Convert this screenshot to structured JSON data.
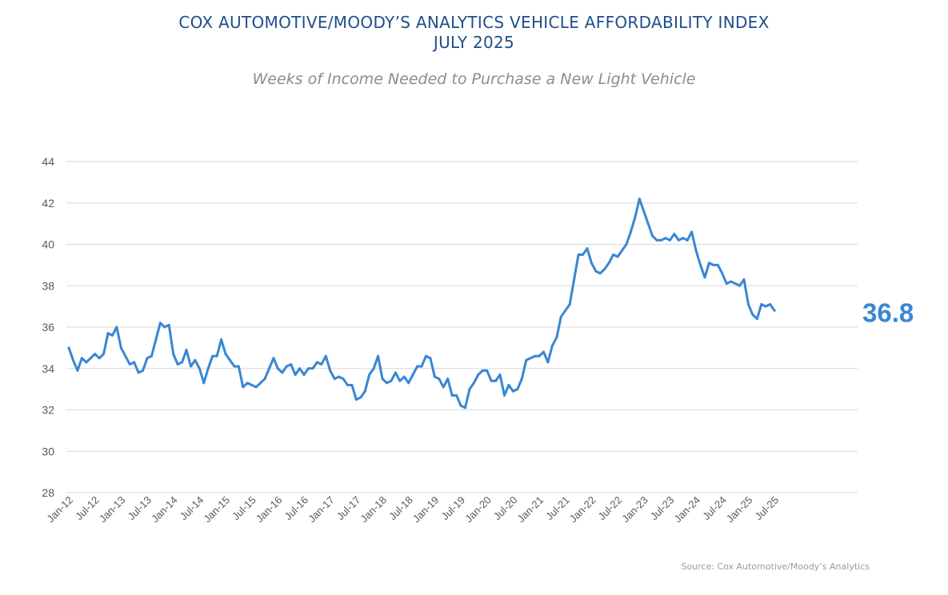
{
  "chart_data": {
    "type": "line",
    "title": "COX AUTOMOTIVE/MOODY’S ANALYTICS VEHICLE AFFORDABILITY INDEX",
    "title_line2": "JULY 2025",
    "subtitle": "Weeks of Income Needed to Purchase a New Light Vehicle",
    "xlabel": "",
    "ylabel": "",
    "ylim": [
      28,
      44
    ],
    "yticks": [
      28,
      30,
      32,
      34,
      36,
      38,
      40,
      42,
      44
    ],
    "xtick_labels": [
      "Jan-12",
      "Jul-12",
      "Jan-13",
      "Jul-13",
      "Jan-14",
      "Jul-14",
      "Jan-15",
      "Jul-15",
      "Jan-16",
      "Jul-16",
      "Jan-17",
      "Jul-17",
      "Jan-18",
      "Jul-18",
      "Jan-19",
      "Jul-19",
      "Jan-20",
      "Jul-20",
      "Jan-21",
      "Jul-21",
      "Jan-22",
      "Jul-22",
      "Jan-23",
      "Jul-23",
      "Jan-24",
      "Jul-24",
      "Jan-25",
      "Jul-25"
    ],
    "grid": true,
    "line_color": "#3a86d4",
    "end_value_label": "36.8",
    "series": [
      {
        "name": "Weeks of Income",
        "start": "Jan-12",
        "frequency": "monthly",
        "values": [
          35.0,
          34.4,
          33.9,
          34.5,
          34.3,
          34.5,
          34.7,
          34.5,
          34.7,
          35.7,
          35.6,
          36.0,
          35.0,
          34.6,
          34.2,
          34.3,
          33.8,
          33.9,
          34.5,
          34.6,
          35.4,
          36.2,
          36.0,
          36.1,
          34.7,
          34.2,
          34.3,
          34.9,
          34.1,
          34.4,
          34.0,
          33.3,
          34.0,
          34.6,
          34.6,
          35.4,
          34.7,
          34.4,
          34.1,
          34.1,
          33.1,
          33.3,
          33.2,
          33.1,
          33.3,
          33.5,
          34.0,
          34.5,
          34.0,
          33.8,
          34.1,
          34.2,
          33.7,
          34.0,
          33.7,
          34.0,
          34.0,
          34.3,
          34.2,
          34.6,
          33.9,
          33.5,
          33.6,
          33.5,
          33.2,
          33.2,
          32.5,
          32.6,
          32.9,
          33.7,
          34.0,
          34.6,
          33.5,
          33.3,
          33.4,
          33.8,
          33.4,
          33.6,
          33.3,
          33.7,
          34.1,
          34.1,
          34.6,
          34.5,
          33.6,
          33.5,
          33.1,
          33.5,
          32.7,
          32.7,
          32.2,
          32.1,
          33.0,
          33.3,
          33.7,
          33.9,
          33.9,
          33.4,
          33.4,
          33.7,
          32.7,
          33.2,
          32.9,
          33.0,
          33.5,
          34.4,
          34.5,
          34.6,
          34.6,
          34.8,
          34.3,
          35.1,
          35.5,
          36.5,
          36.8,
          37.1,
          38.3,
          39.5,
          39.5,
          39.8,
          39.1,
          38.7,
          38.6,
          38.8,
          39.1,
          39.5,
          39.4,
          39.7,
          40.0,
          40.6,
          41.3,
          42.2,
          41.6,
          41.0,
          40.4,
          40.2,
          40.2,
          40.3,
          40.2,
          40.5,
          40.2,
          40.3,
          40.2,
          40.6,
          39.7,
          39.0,
          38.4,
          39.1,
          39.0,
          39.0,
          38.6,
          38.1,
          38.2,
          38.1,
          38.0,
          38.3,
          37.1,
          36.6,
          36.4,
          37.1,
          37.0,
          37.1,
          36.8
        ]
      }
    ]
  },
  "source": "Source: Cox Automotive/Moody’s Analytics"
}
